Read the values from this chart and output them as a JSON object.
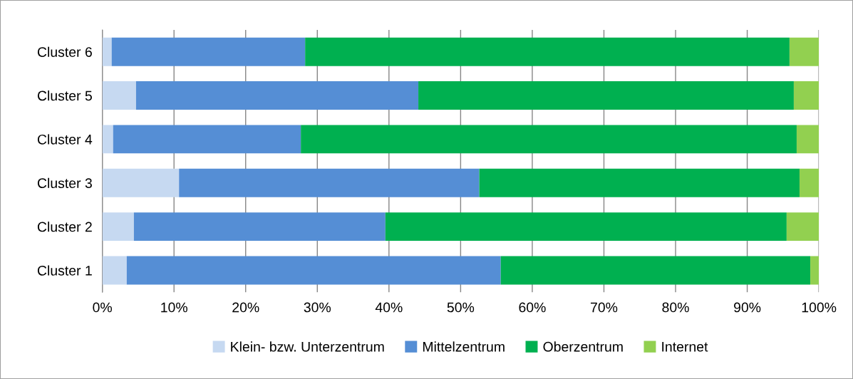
{
  "chart_data": {
    "type": "bar",
    "orientation": "horizontal",
    "stacked": true,
    "categories": [
      "Cluster 6",
      "Cluster 5",
      "Cluster 4",
      "Cluster 3",
      "Cluster 2",
      "Cluster 1"
    ],
    "series": [
      {
        "name": "Klein- bzw. Unterzentrum",
        "color": "#c6d9f1",
        "values": [
          1.3,
          4.7,
          1.5,
          10.7,
          4.4,
          3.4
        ]
      },
      {
        "name": "Mittelzentrum",
        "color": "#558ed5",
        "values": [
          27.0,
          39.4,
          26.2,
          41.9,
          35.1,
          52.2
        ]
      },
      {
        "name": "Oberzentrum",
        "color": "#00b050",
        "values": [
          67.6,
          52.4,
          69.2,
          44.7,
          56.0,
          43.2
        ]
      },
      {
        "name": "Internet",
        "color": "#92d050",
        "values": [
          4.1,
          3.5,
          3.1,
          2.7,
          4.5,
          1.2
        ]
      }
    ],
    "xlim": [
      0,
      100
    ],
    "xticks": [
      {
        "value": 0,
        "label": "0%"
      },
      {
        "value": 10,
        "label": "10%"
      },
      {
        "value": 20,
        "label": "20%"
      },
      {
        "value": 30,
        "label": "30%"
      },
      {
        "value": 40,
        "label": "40%"
      },
      {
        "value": 50,
        "label": "50%"
      },
      {
        "value": 60,
        "label": "60%"
      },
      {
        "value": 70,
        "label": "70%"
      },
      {
        "value": 80,
        "label": "80%"
      },
      {
        "value": 90,
        "label": "90%"
      },
      {
        "value": 100,
        "label": "100%"
      }
    ],
    "grid": "x",
    "legend": "bottom"
  }
}
